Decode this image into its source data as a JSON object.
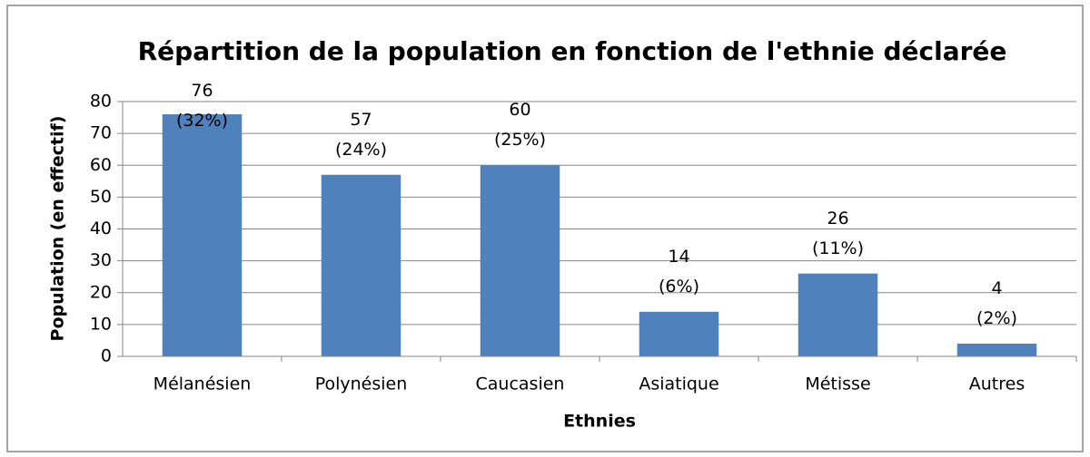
{
  "chart_data": {
    "type": "bar",
    "title": "Répartition de la population en fonction de l'ethnie déclarée",
    "x_label": "Ethnies",
    "y_label": "Population (en effectif)",
    "categories": [
      "Mélanésien",
      "Polynésien",
      "Caucasien",
      "Asiatique",
      "Métisse",
      "Autres"
    ],
    "values": [
      76,
      57,
      60,
      14,
      26,
      4
    ],
    "value_labels": [
      "76\n(32%)",
      "57\n(24%)",
      "60\n(25%)",
      "14\n(6%)",
      "26\n(11%)",
      "4\n(2%)"
    ],
    "color": "#4f81bd",
    "ylim": [
      0,
      80
    ],
    "yticks": [
      0,
      10,
      20,
      30,
      40,
      50,
      60,
      70,
      80
    ],
    "grid": true
  }
}
